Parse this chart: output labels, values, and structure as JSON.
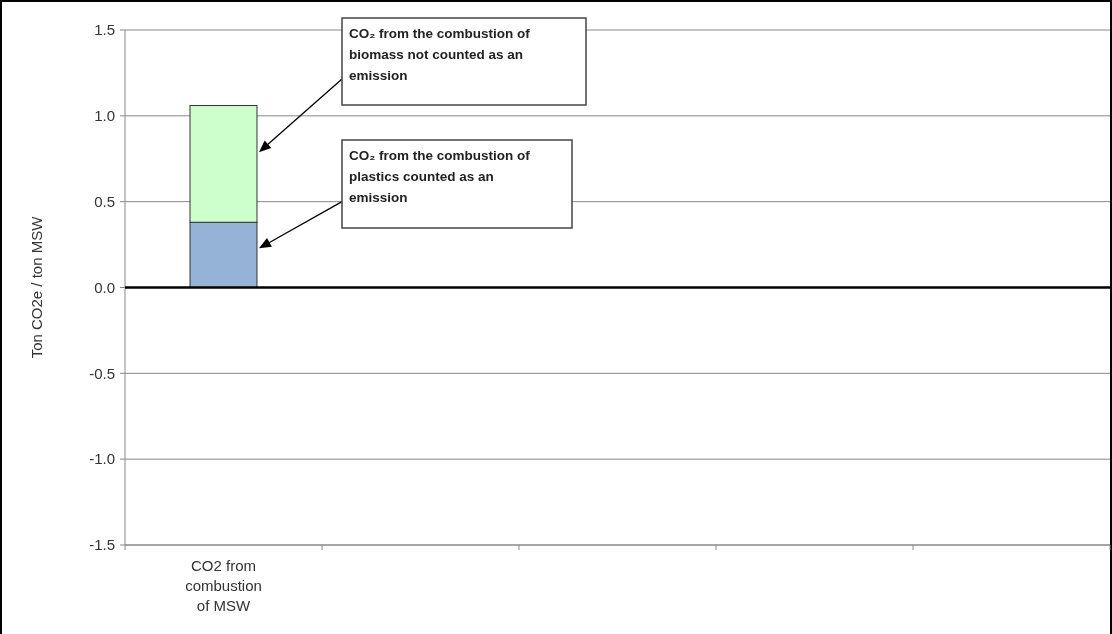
{
  "chart_data": {
    "type": "bar",
    "stacked": true,
    "ylabel": "Ton CO2e / ton MSW",
    "categories": [
      "CO2 from combustion of MSW",
      null,
      null,
      null,
      null
    ],
    "series": [
      {
        "color": "#95b3d7",
        "values": [
          0.38,
          null,
          null,
          null,
          null
        ]
      },
      {
        "color": "#ccffcc",
        "values": [
          0.68,
          null,
          null,
          null,
          null
        ]
      }
    ],
    "ylim": [
      -1.5,
      1.5
    ],
    "yticks": [
      {
        "value": -1.5,
        "label": "-1.5"
      },
      {
        "value": -1.0,
        "label": "-1.0"
      },
      {
        "value": -0.5,
        "label": "-0.5"
      },
      {
        "value": 0,
        "label": "0.0"
      },
      {
        "value": 0.5,
        "label": "0.5"
      },
      {
        "value": 1.0,
        "label": "1.0"
      },
      {
        "value": 1.5,
        "label": "1.5"
      }
    ],
    "grid": "y",
    "annotations": [
      "CO₂ from the combustion of biomass not counted as an emission",
      "CO₂ from the combustion of plastics counted as an emission"
    ]
  }
}
